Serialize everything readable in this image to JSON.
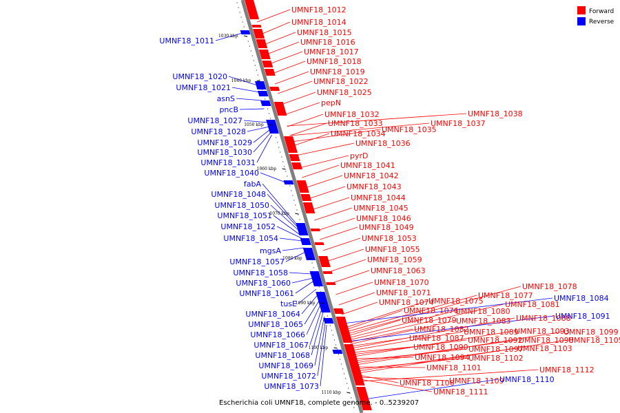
{
  "colors": {
    "forward": "#ff0000",
    "reverse": "#0000ff",
    "backbone": "#808080"
  },
  "legend": [
    {
      "label": "Forward",
      "color": "#ff0000"
    },
    {
      "label": "Reverse",
      "color": "#0000ff"
    }
  ],
  "caption": "Escherichia coli UMNF18, complete genome. - 0..5239207",
  "kbp_ticks": [
    "1030 kbp",
    "1040 kbp",
    "1050 kbp",
    "1060 kbp",
    "1070 kbp",
    "1080 kbp",
    "1090 kbp",
    "1100 kbp",
    "1110 kbp"
  ],
  "reverse_labels": [
    "UMNF18_1011",
    "UMNF18_1020",
    "UMNF18_1021",
    "asnS",
    "pncB",
    "UMNF18_1027",
    "UMNF18_1028",
    "UMNF18_1029",
    "UMNF18_1030",
    "UMNF18_1031",
    "UMNF18_1040",
    "fabA",
    "UMNF18_1048",
    "UMNF18_1050",
    "UMNF18_1051",
    "UMNF18_1052",
    "UMNF18_1054",
    "mgsA",
    "UMNF18_1057",
    "UMNF18_1058",
    "UMNF18_1060",
    "UMNF18_1061",
    "tusE",
    "UMNF18_1064",
    "UMNF18_1065",
    "UMNF18_1066",
    "UMNF18_1067",
    "UMNF18_1068",
    "UMNF18_1069",
    "UMNF18_1072",
    "UMNF18_1073"
  ],
  "forward_labels": [
    "UMNF18_1012",
    "UMNF18_1014",
    "UMNF18_1015",
    "UMNF18_1016",
    "UMNF18_1017",
    "UMNF18_1018",
    "UMNF18_1019",
    "UMNF18_1022",
    "UMNF18_1025",
    "pepN",
    "UMNF18_1032",
    "UMNF18_1033",
    "UMNF18_1034",
    "UMNF18_1035",
    "UMNF18_1036",
    "UMNF18_1037",
    "UMNF18_1038",
    "pyrD",
    "UMNF18_1041",
    "UMNF18_1042",
    "UMNF18_1043",
    "UMNF18_1044",
    "UMNF18_1045",
    "UMNF18_1046",
    "UMNF18_1049",
    "UMNF18_1053",
    "UMNF18_1055",
    "UMNF18_1059",
    "UMNF18_1063",
    "UMNF18_1070",
    "UMNF18_1071",
    "UMNF18_1074",
    "UMNF18_1075",
    "UMNF18_1076",
    "UMNF18_1077",
    "UMNF18_1078",
    "UMNF18_1079",
    "UMNF18_1080",
    "UMNF18_1081",
    "UMNF18_1082",
    "UMNF18_1083",
    "UMNF18_1087",
    "UMNF18_1088",
    "UMNF18_1089",
    "UMNF18_1090",
    "UMNF18_1092",
    "UMNF18_1093",
    "UMNF18_1094",
    "UMNF18_1097",
    "UMNF18_1098",
    "UMNF18_1099",
    "UMNF18_1101",
    "UMNF18_1102",
    "UMNF18_1103",
    "UMNF18_1105",
    "UMNF18_1106",
    "UMNF18_1109",
    "UMNF18_1111",
    "UMNF18_1112"
  ],
  "reverse_side_labels_on_right": [
    "UMNF18_1084",
    "UMNF18_1091",
    "UMNF18_1110"
  ]
}
